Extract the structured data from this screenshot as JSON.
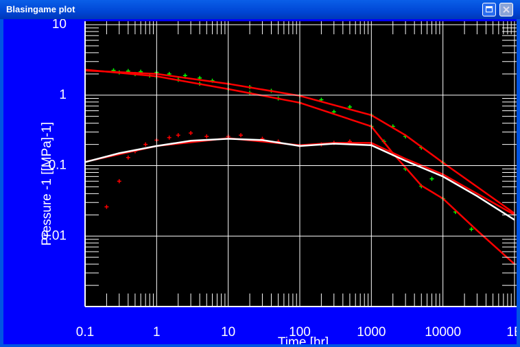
{
  "window": {
    "title": "Blasingame plot"
  },
  "chart_data": {
    "type": "loglog",
    "xlabel": "Time [hr]",
    "ylabel": "Pressure -1 [[MPa]-1]",
    "xlim": [
      0.1,
      100000
    ],
    "ylim": [
      0.001,
      10
    ],
    "xticks": [
      0.1,
      1,
      10,
      100,
      1000,
      10000,
      {
        "value": 100000,
        "label": "1E"
      }
    ],
    "yticks": [
      10,
      1,
      0.1,
      0.01
    ],
    "grid": true,
    "series": [
      {
        "kind": "points",
        "color": "#00ff00",
        "x": [
          0.25,
          0.4,
          0.6,
          1,
          1.5,
          2.5,
          4,
          6,
          10,
          20,
          40,
          100,
          200,
          500,
          1000,
          2000,
          3000,
          5000,
          10000
        ],
        "values": [
          2.25,
          2.2,
          2.15,
          2.1,
          2.0,
          1.9,
          1.75,
          1.6,
          1.46,
          1.3,
          1.15,
          0.98,
          0.86,
          0.68,
          0.52,
          0.36,
          0.26,
          0.18,
          0.11
        ]
      },
      {
        "kind": "points",
        "color": "#00ff00",
        "x": [
          0.3,
          0.5,
          0.8,
          1,
          2,
          4,
          10,
          20,
          50,
          100,
          300,
          1000,
          1500,
          2000,
          3000,
          5000,
          7000,
          10000,
          15000,
          25000
        ],
        "values": [
          2.1,
          2.0,
          1.9,
          1.83,
          1.65,
          1.45,
          1.22,
          1.08,
          0.9,
          0.78,
          0.58,
          0.36,
          0.22,
          0.146,
          0.09,
          0.051,
          0.065,
          0.034,
          0.022,
          0.0125
        ]
      },
      {
        "kind": "points",
        "color": "#ff0000",
        "x": [
          0.2,
          0.3,
          0.4,
          0.5,
          0.7,
          1,
          1.5,
          2,
          3,
          5,
          10,
          15,
          30,
          50,
          100,
          200,
          300,
          500,
          1000
        ],
        "values": [
          0.026,
          0.06,
          0.13,
          0.16,
          0.2,
          0.23,
          0.25,
          0.27,
          0.29,
          0.26,
          0.26,
          0.27,
          0.24,
          0.22,
          0.19,
          0.2,
          0.21,
          0.22,
          0.2
        ]
      },
      {
        "kind": "line",
        "color": "#ff0000",
        "x": [
          0.1,
          1,
          10,
          100,
          1000,
          3000,
          10000,
          30000,
          100000
        ],
        "values": [
          2.24,
          2.0,
          1.45,
          0.98,
          0.52,
          0.27,
          0.11,
          0.05,
          0.021
        ]
      },
      {
        "kind": "line",
        "color": "#ff0000",
        "x": [
          0.1,
          1,
          10,
          100,
          1000,
          2000,
          5000,
          10000,
          30000,
          100000
        ],
        "values": [
          2.3,
          1.85,
          1.22,
          0.78,
          0.36,
          0.15,
          0.052,
          0.034,
          0.012,
          0.004
        ]
      },
      {
        "kind": "line",
        "color": "#ff0000",
        "x": [
          0.1,
          1,
          10,
          100,
          300,
          1000,
          3000,
          10000,
          30000,
          100000
        ],
        "values": [
          0.113,
          0.19,
          0.245,
          0.195,
          0.21,
          0.21,
          0.125,
          0.075,
          0.04,
          0.02
        ]
      },
      {
        "kind": "line",
        "color": "#ffffff",
        "x": [
          0.1,
          0.3,
          1,
          3,
          10,
          30,
          100,
          300,
          1000,
          3000,
          10000,
          30000,
          100000
        ],
        "values": [
          0.112,
          0.15,
          0.19,
          0.225,
          0.24,
          0.23,
          0.19,
          0.205,
          0.195,
          0.117,
          0.07,
          0.037,
          0.017
        ]
      }
    ]
  }
}
